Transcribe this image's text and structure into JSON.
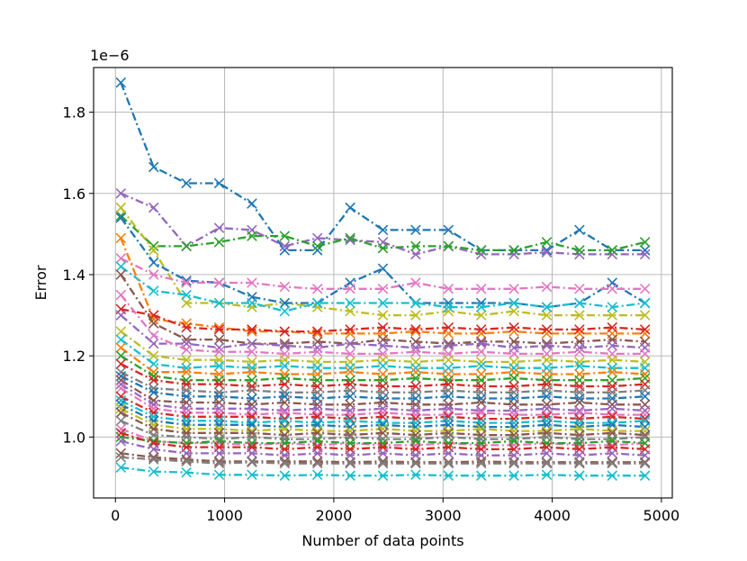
{
  "chart_data": {
    "type": "line",
    "title": "",
    "xlabel": "Number of data points",
    "ylabel": "Error",
    "offset_label": "1e−6",
    "xlim": [
      -200,
      5100
    ],
    "ylim": [
      0.85,
      1.91
    ],
    "xticks": [
      0,
      1000,
      2000,
      3000,
      4000,
      5000
    ],
    "xtick_labels": [
      "0",
      "1000",
      "2000",
      "3000",
      "4000",
      "5000"
    ],
    "yticks": [
      1.0,
      1.2,
      1.4,
      1.6,
      1.8
    ],
    "ytick_labels": [
      "1.0",
      "1.2",
      "1.4",
      "1.6",
      "1.8"
    ],
    "grid": true,
    "marker": "x",
    "linestyle": "dashdot",
    "x": [
      50,
      350,
      650,
      950,
      1250,
      1550,
      1850,
      2150,
      2450,
      2750,
      3050,
      3350,
      3650,
      3950,
      4250,
      4550,
      4850
    ],
    "series": [
      {
        "color": "#1f77b4",
        "values": [
          1.873,
          1.665,
          1.625,
          1.625,
          1.575,
          1.46,
          1.46,
          1.565,
          1.51,
          1.51,
          1.51,
          1.46,
          1.46,
          1.46,
          1.51,
          1.46,
          1.46
        ]
      },
      {
        "color": "#9467bd",
        "values": [
          1.6,
          1.565,
          1.47,
          1.515,
          1.51,
          1.47,
          1.49,
          1.485,
          1.48,
          1.45,
          1.47,
          1.45,
          1.45,
          1.455,
          1.45,
          1.45,
          1.45
        ]
      },
      {
        "color": "#2ca02c",
        "values": [
          1.545,
          1.47,
          1.47,
          1.48,
          1.495,
          1.495,
          1.47,
          1.49,
          1.465,
          1.47,
          1.47,
          1.46,
          1.46,
          1.48,
          1.46,
          1.46,
          1.48
        ]
      },
      {
        "color": "#bcbd22",
        "values": [
          1.565,
          1.46,
          1.33,
          1.33,
          1.32,
          1.33,
          1.32,
          1.31,
          1.3,
          1.3,
          1.31,
          1.3,
          1.31,
          1.3,
          1.3,
          1.3,
          1.3
        ]
      },
      {
        "color": "#1f77b4",
        "values": [
          1.54,
          1.43,
          1.385,
          1.38,
          1.345,
          1.33,
          1.33,
          1.38,
          1.415,
          1.33,
          1.33,
          1.33,
          1.33,
          1.32,
          1.33,
          1.38,
          1.33
        ]
      },
      {
        "color": "#e377c2",
        "values": [
          1.44,
          1.4,
          1.38,
          1.38,
          1.38,
          1.37,
          1.365,
          1.365,
          1.365,
          1.38,
          1.365,
          1.365,
          1.365,
          1.37,
          1.365,
          1.365,
          1.365
        ]
      },
      {
        "color": "#17becf",
        "values": [
          1.42,
          1.36,
          1.35,
          1.33,
          1.33,
          1.31,
          1.33,
          1.33,
          1.33,
          1.33,
          1.32,
          1.32,
          1.33,
          1.32,
          1.33,
          1.32,
          1.33
        ]
      },
      {
        "color": "#ff7f0e",
        "values": [
          1.49,
          1.29,
          1.28,
          1.27,
          1.26,
          1.26,
          1.255,
          1.255,
          1.255,
          1.26,
          1.255,
          1.255,
          1.26,
          1.255,
          1.255,
          1.255,
          1.255
        ]
      },
      {
        "color": "#d62728",
        "values": [
          1.315,
          1.3,
          1.27,
          1.265,
          1.265,
          1.26,
          1.26,
          1.265,
          1.27,
          1.265,
          1.27,
          1.265,
          1.27,
          1.265,
          1.265,
          1.27,
          1.265
        ]
      },
      {
        "color": "#8c564b",
        "values": [
          1.4,
          1.28,
          1.24,
          1.24,
          1.23,
          1.23,
          1.235,
          1.23,
          1.24,
          1.235,
          1.23,
          1.235,
          1.235,
          1.23,
          1.235,
          1.24,
          1.235
        ]
      },
      {
        "color": "#9467bd",
        "values": [
          1.3,
          1.23,
          1.23,
          1.22,
          1.23,
          1.225,
          1.22,
          1.23,
          1.225,
          1.22,
          1.225,
          1.23,
          1.22,
          1.225,
          1.22,
          1.225,
          1.22
        ]
      },
      {
        "color": "#e377c2",
        "values": [
          1.35,
          1.25,
          1.215,
          1.21,
          1.21,
          1.205,
          1.21,
          1.205,
          1.205,
          1.21,
          1.205,
          1.21,
          1.205,
          1.205,
          1.21,
          1.205,
          1.205
        ]
      },
      {
        "color": "#bcbd22",
        "values": [
          1.26,
          1.2,
          1.19,
          1.19,
          1.185,
          1.19,
          1.185,
          1.185,
          1.19,
          1.185,
          1.19,
          1.185,
          1.185,
          1.19,
          1.185,
          1.19,
          1.185
        ]
      },
      {
        "color": "#17becf",
        "values": [
          1.24,
          1.18,
          1.17,
          1.175,
          1.17,
          1.175,
          1.17,
          1.17,
          1.175,
          1.17,
          1.17,
          1.175,
          1.17,
          1.17,
          1.175,
          1.17,
          1.17
        ]
      },
      {
        "color": "#ff7f0e",
        "values": [
          1.22,
          1.16,
          1.16,
          1.155,
          1.16,
          1.155,
          1.155,
          1.16,
          1.155,
          1.16,
          1.155,
          1.155,
          1.16,
          1.155,
          1.155,
          1.16,
          1.155
        ]
      },
      {
        "color": "#2ca02c",
        "values": [
          1.2,
          1.15,
          1.14,
          1.14,
          1.14,
          1.145,
          1.14,
          1.14,
          1.14,
          1.145,
          1.14,
          1.14,
          1.145,
          1.14,
          1.14,
          1.14,
          1.145
        ]
      },
      {
        "color": "#d62728",
        "values": [
          1.18,
          1.14,
          1.13,
          1.13,
          1.125,
          1.13,
          1.125,
          1.13,
          1.125,
          1.125,
          1.13,
          1.125,
          1.125,
          1.13,
          1.125,
          1.125,
          1.13
        ]
      },
      {
        "color": "#7f7f7f",
        "values": [
          1.16,
          1.12,
          1.115,
          1.11,
          1.115,
          1.11,
          1.11,
          1.115,
          1.11,
          1.11,
          1.115,
          1.11,
          1.11,
          1.115,
          1.11,
          1.11,
          1.115
        ]
      },
      {
        "color": "#1f77b4",
        "values": [
          1.15,
          1.11,
          1.1,
          1.1,
          1.095,
          1.1,
          1.095,
          1.1,
          1.095,
          1.095,
          1.1,
          1.095,
          1.095,
          1.1,
          1.095,
          1.095,
          1.1
        ]
      },
      {
        "color": "#8c564b",
        "values": [
          1.14,
          1.09,
          1.085,
          1.085,
          1.08,
          1.085,
          1.08,
          1.08,
          1.085,
          1.08,
          1.08,
          1.085,
          1.08,
          1.08,
          1.085,
          1.08,
          1.08
        ]
      },
      {
        "color": "#9467bd",
        "values": [
          1.13,
          1.08,
          1.07,
          1.07,
          1.07,
          1.065,
          1.07,
          1.065,
          1.07,
          1.065,
          1.07,
          1.065,
          1.065,
          1.07,
          1.065,
          1.07,
          1.065
        ]
      },
      {
        "color": "#e377c2",
        "values": [
          1.12,
          1.07,
          1.06,
          1.06,
          1.055,
          1.06,
          1.055,
          1.055,
          1.06,
          1.055,
          1.055,
          1.06,
          1.055,
          1.055,
          1.06,
          1.055,
          1.055
        ]
      },
      {
        "color": "#d62728",
        "values": [
          1.1,
          1.06,
          1.05,
          1.05,
          1.05,
          1.045,
          1.05,
          1.045,
          1.05,
          1.045,
          1.05,
          1.045,
          1.045,
          1.05,
          1.045,
          1.05,
          1.045
        ]
      },
      {
        "color": "#17becf",
        "values": [
          1.09,
          1.05,
          1.04,
          1.04,
          1.035,
          1.04,
          1.035,
          1.04,
          1.035,
          1.035,
          1.04,
          1.035,
          1.035,
          1.04,
          1.035,
          1.035,
          1.04
        ]
      },
      {
        "color": "#1f77b4",
        "values": [
          1.08,
          1.04,
          1.03,
          1.03,
          1.03,
          1.025,
          1.03,
          1.025,
          1.03,
          1.025,
          1.03,
          1.025,
          1.025,
          1.03,
          1.025,
          1.03,
          1.025
        ]
      },
      {
        "color": "#bcbd22",
        "values": [
          1.07,
          1.03,
          1.02,
          1.02,
          1.015,
          1.02,
          1.015,
          1.015,
          1.02,
          1.015,
          1.015,
          1.02,
          1.015,
          1.015,
          1.02,
          1.015,
          1.015
        ]
      },
      {
        "color": "#8c564b",
        "values": [
          1.06,
          1.02,
          1.01,
          1.01,
          1.01,
          1.005,
          1.01,
          1.005,
          1.01,
          1.005,
          1.01,
          1.005,
          1.005,
          1.01,
          1.005,
          1.01,
          1.005
        ]
      },
      {
        "color": "#7f7f7f",
        "values": [
          1.04,
          1.005,
          1.0,
          0.995,
          1.0,
          0.995,
          0.995,
          1.0,
          0.995,
          0.995,
          1.0,
          0.995,
          0.995,
          1.0,
          0.995,
          0.995,
          1.0
        ]
      },
      {
        "color": "#e377c2",
        "values": [
          1.02,
          0.99,
          0.985,
          0.985,
          0.98,
          0.985,
          0.98,
          0.985,
          0.98,
          0.98,
          0.985,
          0.98,
          0.98,
          0.985,
          0.98,
          0.98,
          0.985
        ]
      },
      {
        "color": "#2ca02c",
        "values": [
          1.0,
          0.99,
          0.985,
          0.99,
          0.985,
          0.985,
          0.99,
          0.985,
          0.985,
          0.99,
          0.985,
          0.985,
          0.99,
          0.985,
          0.985,
          0.99,
          0.985
        ]
      },
      {
        "color": "#d62728",
        "values": [
          1.01,
          0.985,
          0.975,
          0.975,
          0.975,
          0.97,
          0.975,
          0.97,
          0.975,
          0.97,
          0.975,
          0.97,
          0.97,
          0.975,
          0.97,
          0.975,
          0.97
        ]
      },
      {
        "color": "#9467bd",
        "values": [
          0.99,
          0.97,
          0.96,
          0.96,
          0.96,
          0.955,
          0.96,
          0.955,
          0.96,
          0.955,
          0.96,
          0.955,
          0.955,
          0.96,
          0.955,
          0.96,
          0.955
        ]
      },
      {
        "color": "#8c564b",
        "values": [
          0.96,
          0.95,
          0.945,
          0.94,
          0.94,
          0.94,
          0.94,
          0.938,
          0.94,
          0.938,
          0.938,
          0.94,
          0.938,
          0.938,
          0.938,
          0.938,
          0.938
        ]
      },
      {
        "color": "#7f7f7f",
        "values": [
          0.95,
          0.945,
          0.94,
          0.935,
          0.938,
          0.935,
          0.935,
          0.935,
          0.935,
          0.935,
          0.935,
          0.935,
          0.935,
          0.935,
          0.935,
          0.935,
          0.935
        ]
      },
      {
        "color": "#17becf",
        "values": [
          0.925,
          0.915,
          0.913,
          0.907,
          0.907,
          0.905,
          0.907,
          0.905,
          0.905,
          0.907,
          0.905,
          0.905,
          0.905,
          0.907,
          0.905,
          0.905,
          0.905
        ]
      }
    ]
  }
}
